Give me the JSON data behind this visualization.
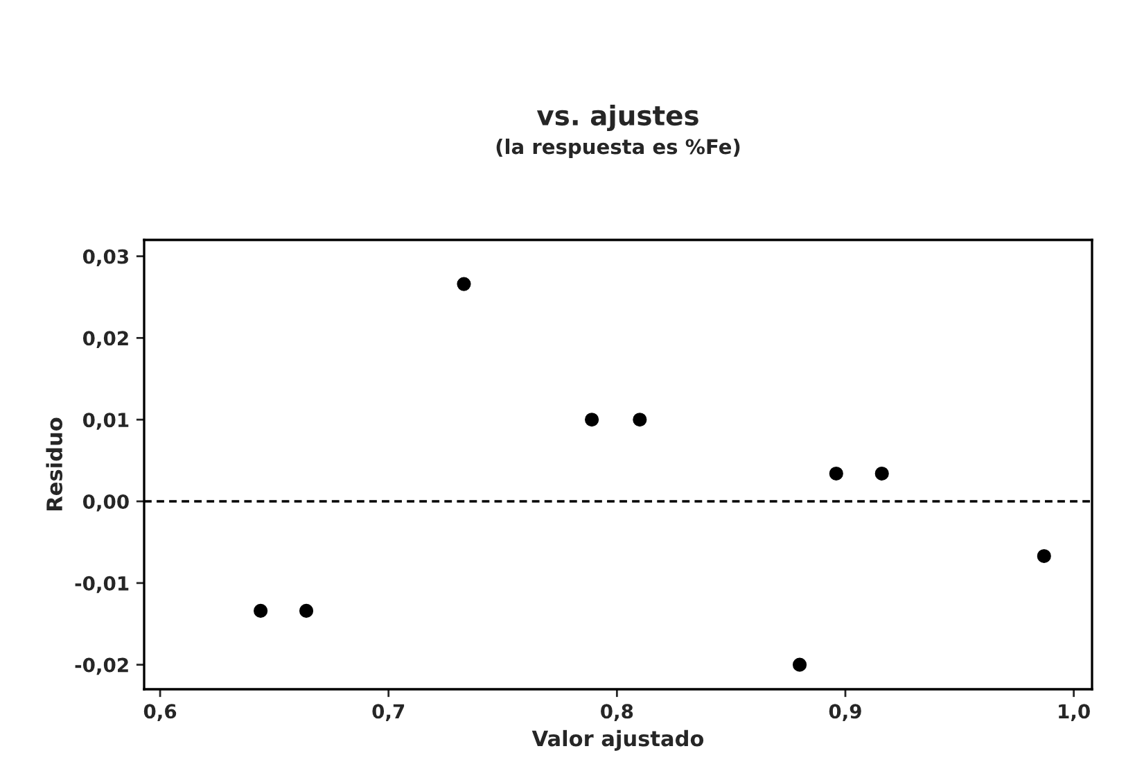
{
  "chart_data": {
    "type": "scatter",
    "title": "vs. ajustes",
    "subtitle": "(la respuesta es %Fe)",
    "xlabel": "Valor ajustado",
    "ylabel": "Residuo",
    "x": [
      0.644,
      0.664,
      0.733,
      0.789,
      0.81,
      0.88,
      0.896,
      0.916,
      0.987
    ],
    "series": [
      {
        "color": "#000000",
        "values": [
          -0.0134,
          -0.0134,
          0.0266,
          0.01,
          0.01,
          -0.02,
          0.0034,
          0.0034,
          -0.0067
        ]
      }
    ],
    "marker": "circle",
    "xlim": [
      0.593,
      1.008
    ],
    "ylim": [
      -0.023,
      0.032
    ],
    "xticks": [
      {
        "value": 0.6,
        "label": "0,6"
      },
      {
        "value": 0.7,
        "label": "0,7"
      },
      {
        "value": 0.8,
        "label": "0,8"
      },
      {
        "value": 0.9,
        "label": "0,9"
      },
      {
        "value": 1.0,
        "label": "1,0"
      }
    ],
    "yticks": [
      {
        "value": -0.02,
        "label": "-0,02"
      },
      {
        "value": -0.01,
        "label": "-0,01"
      },
      {
        "value": 0,
        "label": "0,00"
      },
      {
        "value": 0.01,
        "label": "0,01"
      },
      {
        "value": 0.02,
        "label": "0,02"
      },
      {
        "value": 0.03,
        "label": "0,03"
      }
    ],
    "ref_lines": [
      {
        "axis": "y",
        "value": 0,
        "line_style": "dashed",
        "color": "#000000"
      }
    ],
    "grid": false,
    "legend": false
  }
}
